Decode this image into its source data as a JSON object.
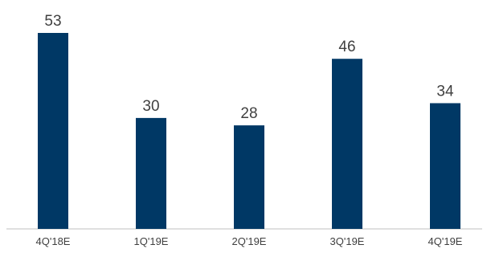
{
  "chart_data": {
    "type": "bar",
    "categories": [
      "4Q'18E",
      "1Q'19E",
      "2Q'19E",
      "3Q'19E",
      "4Q'19E"
    ],
    "values": [
      53,
      30,
      28,
      46,
      34
    ],
    "data_labels": [
      "53",
      "30",
      "28",
      "46",
      "34"
    ],
    "title": "",
    "xlabel": "",
    "ylabel": "",
    "ylim": [
      0,
      53
    ],
    "grid": false,
    "legend": "none",
    "colors": {
      "bar": "#003865",
      "axis": "#bfbfbf",
      "text": "#404040"
    }
  }
}
